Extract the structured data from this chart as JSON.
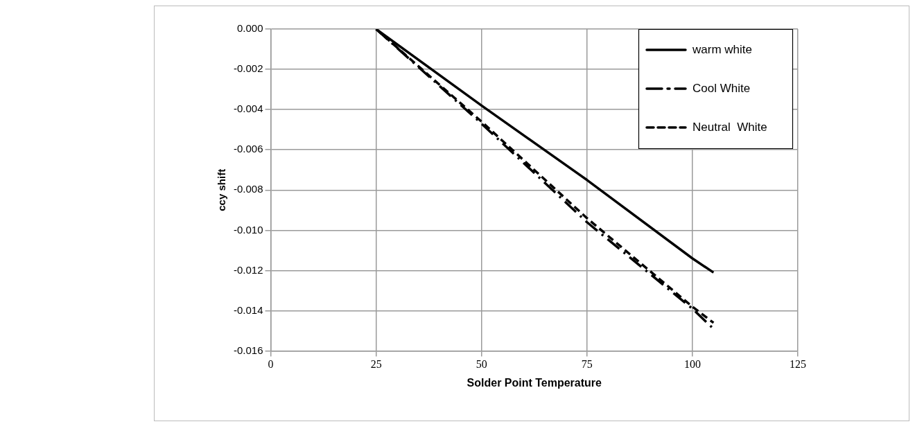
{
  "chart_data": {
    "type": "line",
    "xlabel": "Solder Point Temperature",
    "ylabel": "ccy shift",
    "xlim": [
      0,
      125
    ],
    "xticks": [
      0,
      25,
      50,
      75,
      100,
      125
    ],
    "ylim": [
      -0.016,
      0
    ],
    "yticks": [
      {
        "value": 0,
        "label": "0.000"
      },
      {
        "value": -0.002,
        "label": "-0.002"
      },
      {
        "value": -0.004,
        "label": "-0.004"
      },
      {
        "value": -0.006,
        "label": "-0.006"
      },
      {
        "value": -0.008,
        "label": "-0.008"
      },
      {
        "value": -0.01,
        "label": "-0.010"
      },
      {
        "value": -0.012,
        "label": "-0.012"
      },
      {
        "value": -0.014,
        "label": "-0.014"
      },
      {
        "value": -0.016,
        "label": "-0.016"
      }
    ],
    "grid": true,
    "legend": "top right",
    "marker": "none",
    "series": [
      {
        "name": "warm white",
        "color": "#000000",
        "line_style": "solid",
        "x": [
          25,
          50,
          75,
          100,
          105
        ],
        "values": [
          0,
          -0.0038,
          -0.0075,
          -0.0114,
          -0.0121
        ]
      },
      {
        "name": "Cool White",
        "color": "#000000",
        "line_style": "dashdot",
        "x": [
          25,
          50,
          75,
          100,
          105
        ],
        "values": [
          0,
          -0.0047,
          -0.0096,
          -0.0139,
          -0.0149
        ]
      },
      {
        "name": "Neutral  White",
        "color": "#000000",
        "line_style": "dashed",
        "x": [
          25,
          50,
          75,
          100,
          105
        ],
        "values": [
          0,
          -0.0046,
          -0.0094,
          -0.0138,
          -0.0146
        ]
      }
    ]
  }
}
